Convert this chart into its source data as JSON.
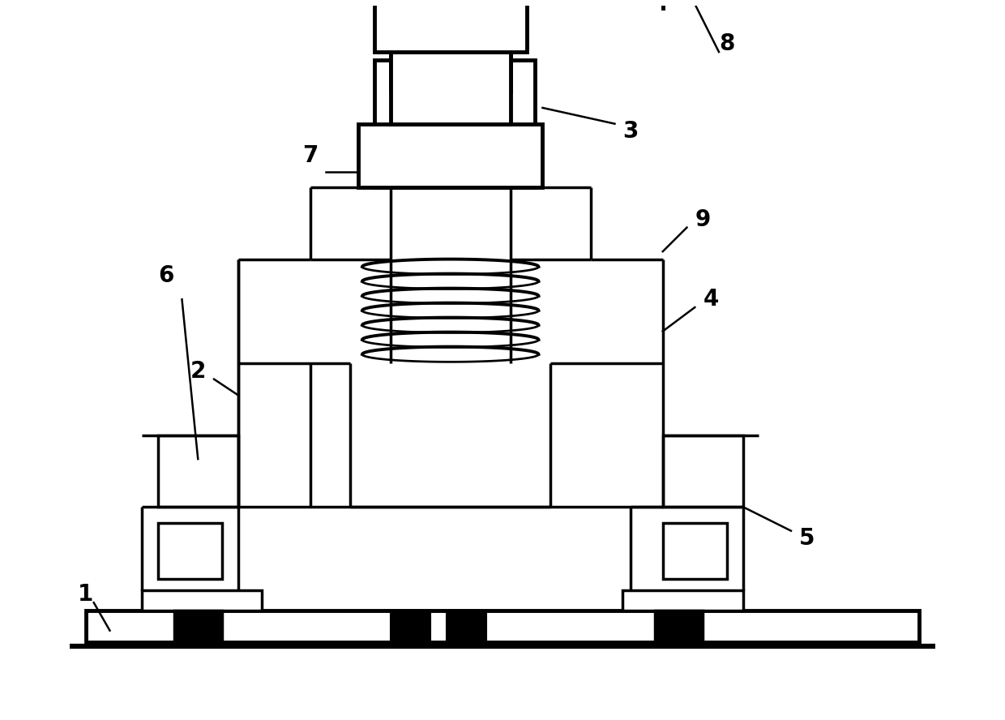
{
  "bg_color": "#ffffff",
  "lc": "#000000",
  "lw": 2.5,
  "tlw": 3.5,
  "fs": 20
}
